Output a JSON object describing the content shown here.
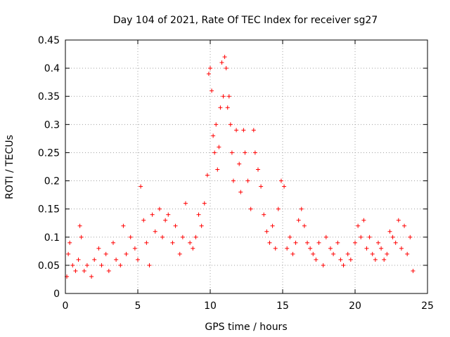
{
  "chart_data": {
    "type": "scatter",
    "title": "Day 104 of 2021, Rate Of TEC Index for receiver sg27",
    "xlabel": "GPS time / hours",
    "ylabel": "ROTI / TECUs",
    "xlim": [
      0,
      25
    ],
    "ylim": [
      0,
      0.45
    ],
    "xticks": [
      0,
      5,
      10,
      15,
      20,
      25
    ],
    "yticks": [
      0,
      0.05,
      0.1,
      0.15,
      0.2,
      0.25,
      0.3,
      0.35,
      0.4,
      0.45
    ],
    "xtick_labels": [
      "0",
      "5",
      "10",
      "15",
      "20",
      "25"
    ],
    "ytick_labels": [
      "0",
      "0.05",
      "0.1",
      "0.15",
      "0.2",
      "0.25",
      "0.3",
      "0.35",
      "0.4",
      "0.45"
    ],
    "grid": true,
    "marker": "+",
    "color": "#ff0000",
    "series": [
      {
        "x": [
          0.1,
          0.2,
          0.3,
          0.5,
          0.7,
          0.9,
          1.0,
          1.1,
          1.3,
          1.5,
          1.8,
          2.0,
          2.3,
          2.5,
          2.8,
          3.0,
          3.3,
          3.5,
          3.8,
          4.0,
          4.2,
          4.5,
          4.8,
          5.0,
          5.2,
          5.4,
          5.6,
          5.8,
          6.0,
          6.2,
          6.5,
          6.7,
          6.9,
          7.1,
          7.4,
          7.6,
          7.9,
          8.1,
          8.3,
          8.6,
          8.8,
          9.0,
          9.2,
          9.4,
          9.6,
          9.8,
          9.9,
          10.0,
          10.1,
          10.2,
          10.3,
          10.4,
          10.5,
          10.6,
          10.7,
          10.8,
          10.9,
          11.0,
          11.1,
          11.2,
          11.3,
          11.4,
          11.5,
          11.6,
          11.8,
          12.0,
          12.1,
          12.3,
          12.4,
          12.6,
          12.8,
          13.0,
          13.1,
          13.3,
          13.5,
          13.7,
          13.9,
          14.1,
          14.3,
          14.5,
          14.7,
          14.9,
          15.1,
          15.3,
          15.5,
          15.7,
          15.9,
          16.1,
          16.3,
          16.5,
          16.7,
          16.9,
          17.1,
          17.3,
          17.5,
          17.8,
          18.0,
          18.3,
          18.5,
          18.8,
          19.0,
          19.2,
          19.5,
          19.7,
          20.0,
          20.2,
          20.4,
          20.6,
          20.8,
          21.0,
          21.2,
          21.4,
          21.6,
          21.8,
          22.0,
          22.2,
          22.4,
          22.6,
          22.8,
          23.0,
          23.2,
          23.4,
          23.6,
          23.8,
          24.0
        ],
        "y": [
          0.03,
          0.07,
          0.09,
          0.05,
          0.04,
          0.06,
          0.12,
          0.1,
          0.04,
          0.05,
          0.03,
          0.06,
          0.08,
          0.05,
          0.07,
          0.04,
          0.09,
          0.06,
          0.05,
          0.12,
          0.07,
          0.1,
          0.08,
          0.06,
          0.19,
          0.13,
          0.09,
          0.05,
          0.14,
          0.11,
          0.15,
          0.1,
          0.13,
          0.14,
          0.09,
          0.12,
          0.07,
          0.1,
          0.16,
          0.09,
          0.08,
          0.1,
          0.14,
          0.12,
          0.16,
          0.21,
          0.39,
          0.4,
          0.36,
          0.28,
          0.25,
          0.3,
          0.22,
          0.26,
          0.33,
          0.41,
          0.35,
          0.42,
          0.4,
          0.33,
          0.35,
          0.3,
          0.25,
          0.2,
          0.29,
          0.23,
          0.18,
          0.29,
          0.25,
          0.2,
          0.15,
          0.29,
          0.25,
          0.22,
          0.19,
          0.14,
          0.11,
          0.09,
          0.12,
          0.08,
          0.15,
          0.2,
          0.19,
          0.08,
          0.1,
          0.07,
          0.09,
          0.13,
          0.15,
          0.12,
          0.09,
          0.08,
          0.07,
          0.06,
          0.09,
          0.05,
          0.1,
          0.08,
          0.07,
          0.09,
          0.06,
          0.05,
          0.07,
          0.06,
          0.09,
          0.12,
          0.1,
          0.13,
          0.08,
          0.1,
          0.07,
          0.06,
          0.09,
          0.08,
          0.06,
          0.07,
          0.11,
          0.1,
          0.09,
          0.13,
          0.08,
          0.12,
          0.07,
          0.1,
          0.04
        ]
      }
    ]
  }
}
